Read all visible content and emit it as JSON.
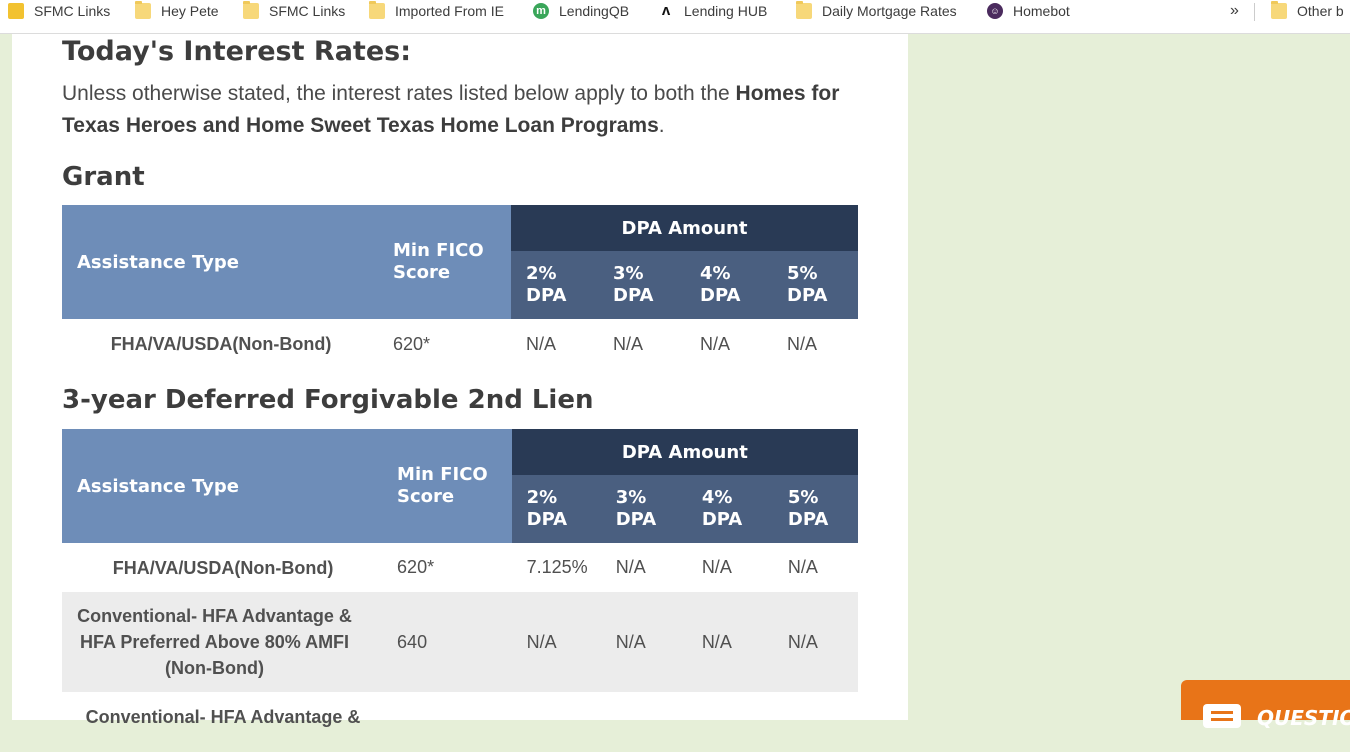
{
  "bookmarks": {
    "items": [
      {
        "label": "SFMC Links",
        "icon": "sfmc-favicon-icon"
      },
      {
        "label": "Hey Pete",
        "icon": "folder-icon"
      },
      {
        "label": "SFMC Links",
        "icon": "folder-icon"
      },
      {
        "label": "Imported From IE",
        "icon": "folder-icon"
      },
      {
        "label": "LendingQB",
        "icon": "lendingqb-icon"
      },
      {
        "label": "Lending HUB",
        "icon": "lending-hub-icon"
      },
      {
        "label": "Daily Mortgage Rates",
        "icon": "folder-icon"
      },
      {
        "label": "Homebot",
        "icon": "homebot-icon"
      }
    ],
    "overflow_label": "»",
    "other_label": "Other b"
  },
  "page": {
    "title": "Today's Interest Rates:",
    "intro_text": "Unless otherwise stated, the interest rates listed below apply to both the ",
    "intro_bold": "Homes for Texas Heroes and Home Sweet Texas Home Loan Programs",
    "intro_end": "."
  },
  "grant": {
    "heading": "Grant",
    "headers": {
      "assistance_type": "Assistance Type",
      "min_fico": "Min FICO Score",
      "dpa_amount": "DPA Amount",
      "dpa_cols": [
        "2% DPA",
        "3% DPA",
        "4% DPA",
        "5% DPA"
      ]
    },
    "rows": [
      {
        "type": "FHA/VA/USDA(Non-Bond)",
        "fico": "620*",
        "values": [
          "N/A",
          "N/A",
          "N/A",
          "N/A"
        ]
      }
    ]
  },
  "deferred": {
    "heading": "3-year Deferred Forgivable 2nd Lien",
    "headers": {
      "assistance_type": "Assistance Type",
      "min_fico": "Min FICO Score",
      "dpa_amount": "DPA Amount",
      "dpa_cols": [
        "2% DPA",
        "3% DPA",
        "4% DPA",
        "5% DPA"
      ]
    },
    "rows": [
      {
        "type": "FHA/VA/USDA(Non-Bond)",
        "fico": "620*",
        "values": [
          "7.125%",
          "N/A",
          "N/A",
          "N/A"
        ]
      },
      {
        "type": "Conventional- HFA Advantage & HFA Preferred Above 80% AMFI (Non-Bond)",
        "fico": "640",
        "values": [
          "N/A",
          "N/A",
          "N/A",
          "N/A"
        ]
      },
      {
        "type": "Conventional- HFA Advantage &",
        "fico": "",
        "values": [
          "",
          "",
          "",
          ""
        ]
      }
    ]
  },
  "chat_widget": {
    "label": "QUESTIO",
    "icon": "chat-bubble-icon",
    "color": "#e87418"
  },
  "colors": {
    "header_light": "#6e8db8",
    "header_dark": "#293a55",
    "header_mid": "#4a5f80",
    "page_bg": "#e6efd8"
  }
}
